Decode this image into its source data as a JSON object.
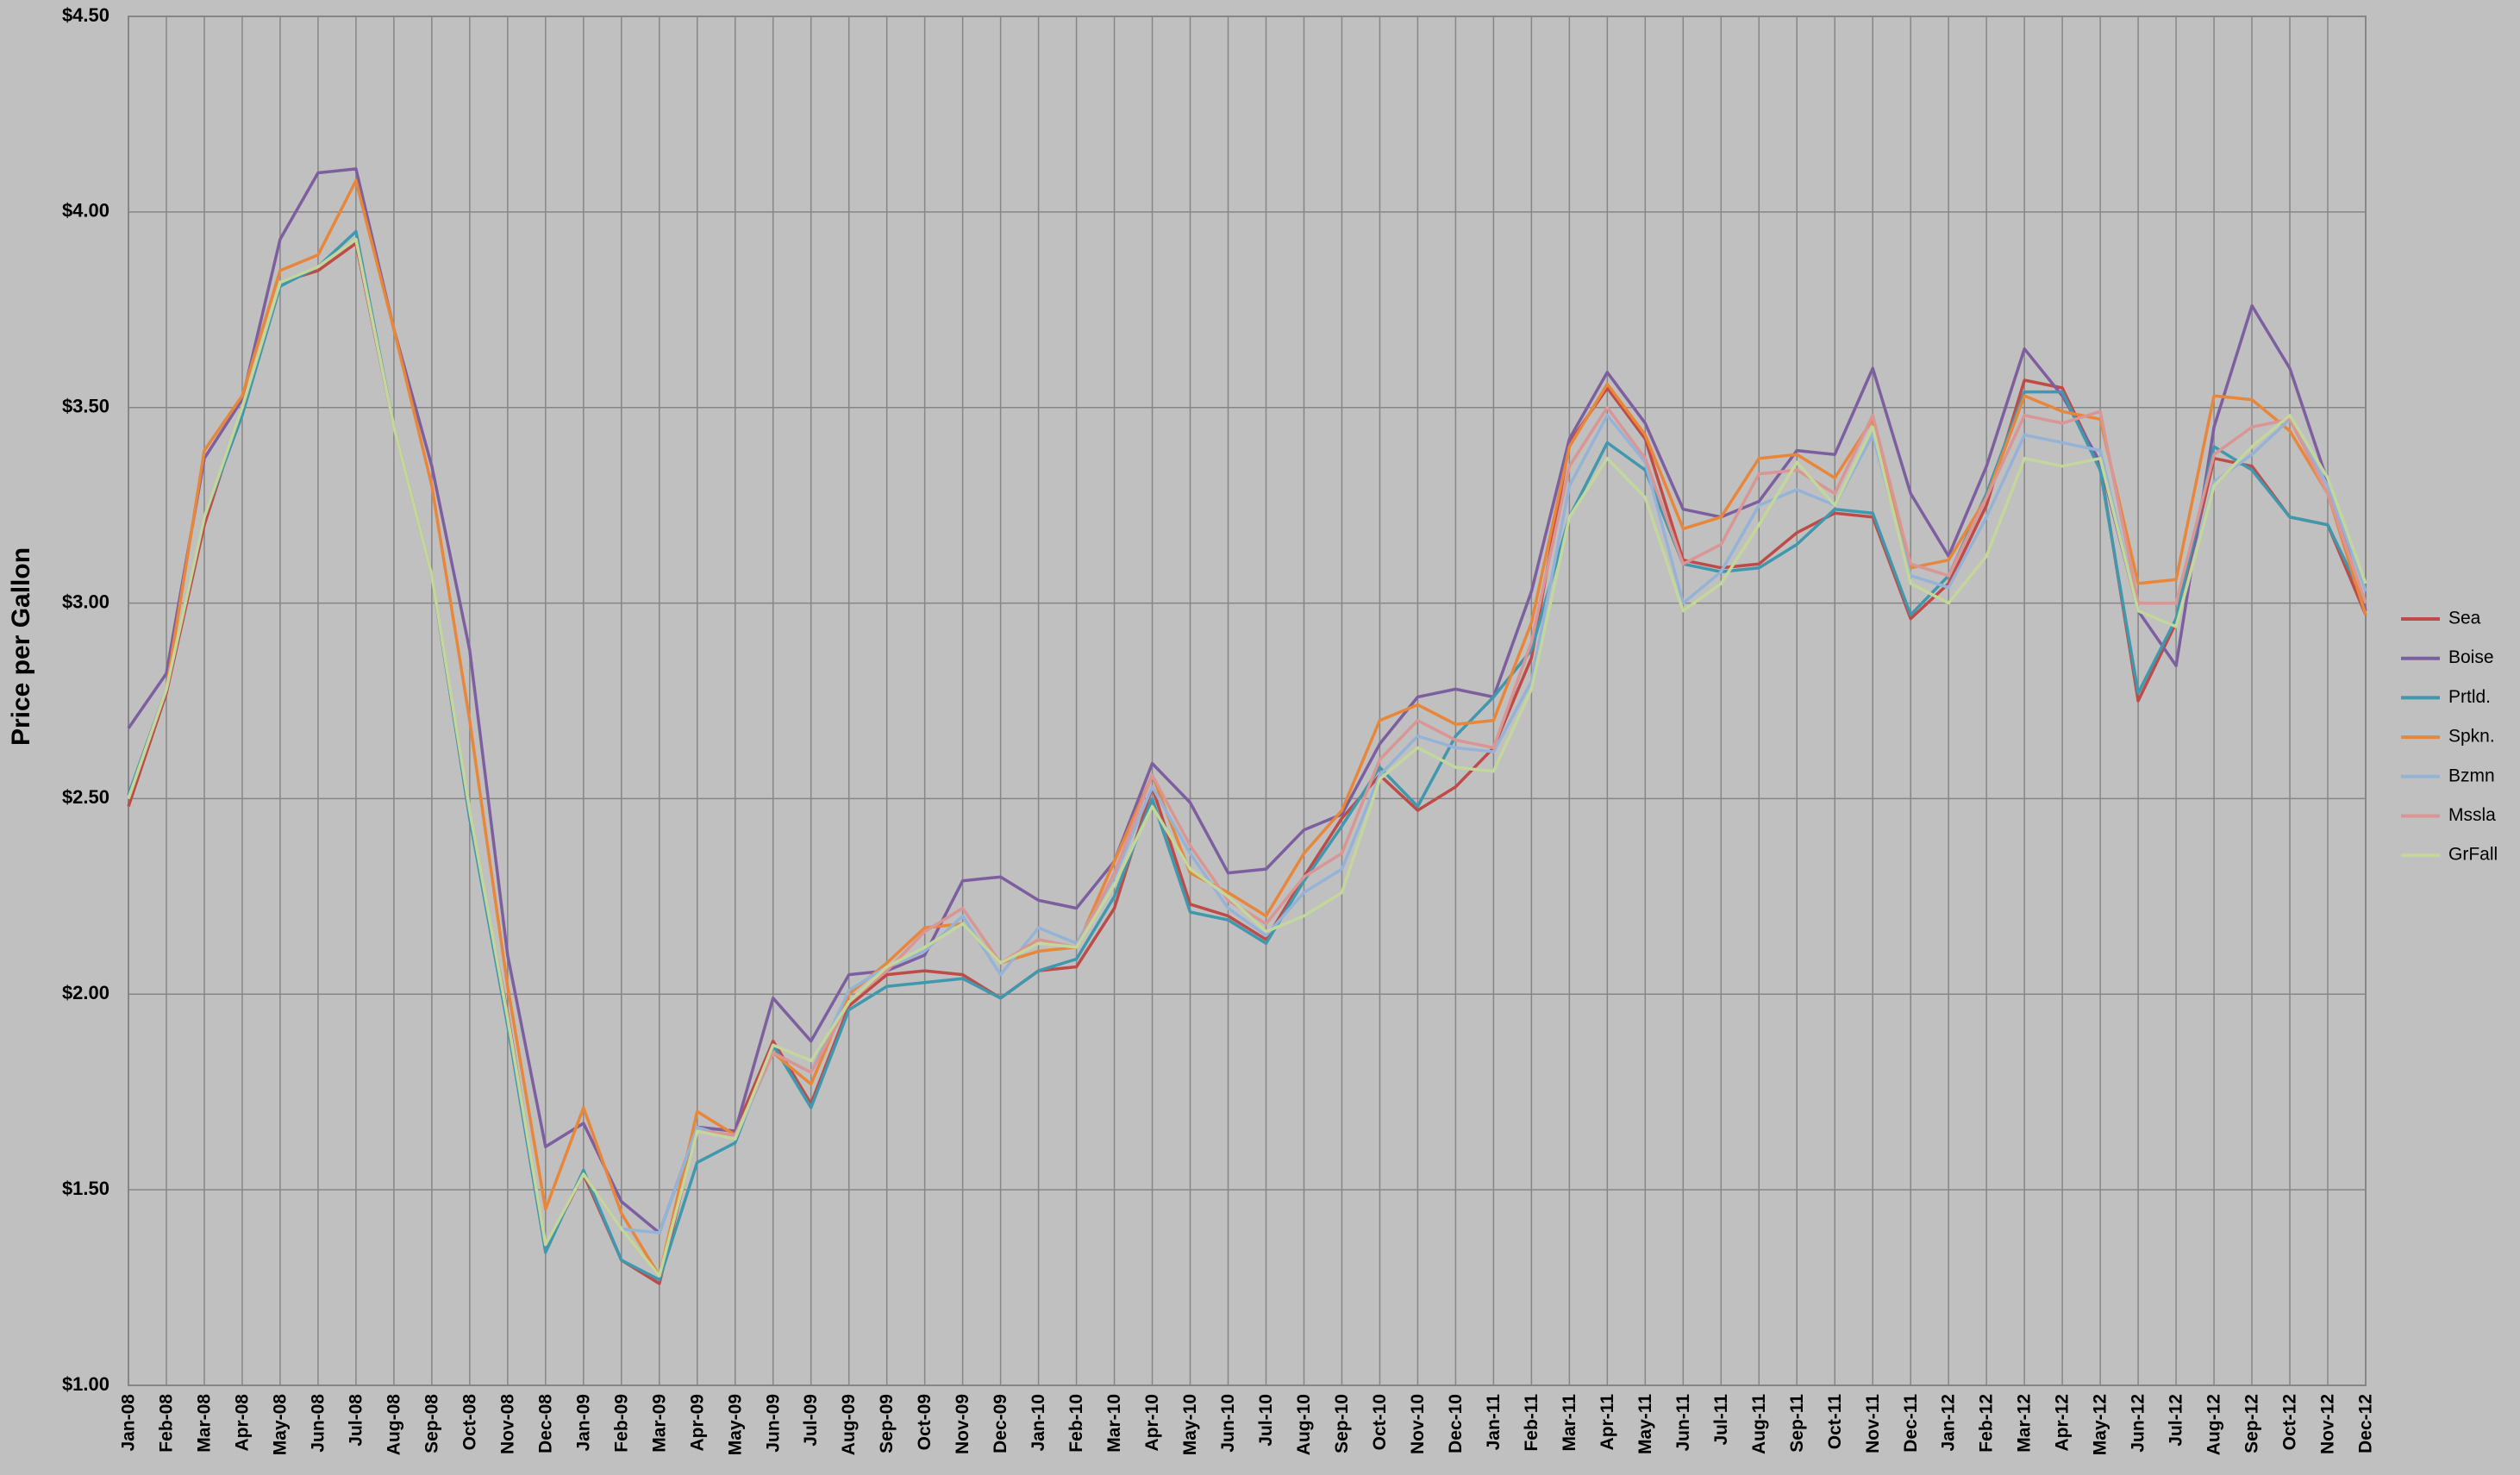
{
  "chart_data": {
    "type": "line",
    "y_label": "Price per  Gallon",
    "categories": [
      "Jan-08",
      "Feb-08",
      "Mar-08",
      "Apr-08",
      "May-08",
      "Jun-08",
      "Jul-08",
      "Aug-08",
      "Sep-08",
      "Oct-08",
      "Nov-08",
      "Dec-08",
      "Jan-09",
      "Feb-09",
      "Mar-09",
      "Apr-09",
      "May-09",
      "Jun-09",
      "Jul-09",
      "Aug-09",
      "Sep-09",
      "Oct-09",
      "Nov-09",
      "Dec-09",
      "Jan-10",
      "Feb-10",
      "Mar-10",
      "Apr-10",
      "May-10",
      "Jun-10",
      "Jul-10",
      "Aug-10",
      "Sep-10",
      "Oct-10",
      "Nov-10",
      "Dec-10",
      "Jan-11",
      "Feb-11",
      "Mar-11",
      "Apr-11",
      "May-11",
      "Jun-11",
      "Jul-11",
      "Aug-11",
      "Sep-11",
      "Oct-11",
      "Nov-11",
      "Dec-11",
      "Jan-12",
      "Feb-12",
      "Mar-12",
      "Apr-12",
      "May-12",
      "Jun-12",
      "Jul-12",
      "Aug-12",
      "Sep-12",
      "Oct-12",
      "Nov-12",
      "Dec-12"
    ],
    "series": [
      {
        "name": "Sea",
        "color": "#be4b48",
        "values": [
          2.48,
          2.77,
          3.2,
          3.5,
          3.82,
          3.85,
          3.92,
          3.45,
          3.07,
          2.45,
          1.95,
          1.35,
          1.54,
          1.32,
          1.26,
          1.66,
          1.65,
          1.88,
          1.72,
          1.97,
          2.05,
          2.06,
          2.05,
          1.99,
          2.06,
          2.07,
          2.22,
          2.53,
          2.23,
          2.2,
          2.14,
          2.3,
          2.45,
          2.56,
          2.47,
          2.53,
          2.63,
          2.86,
          3.41,
          3.55,
          3.42,
          3.11,
          3.09,
          3.1,
          3.18,
          3.23,
          3.22,
          2.96,
          3.05,
          3.25,
          3.57,
          3.55,
          3.35,
          2.75,
          2.95,
          3.37,
          3.35,
          3.22,
          3.2,
          2.97
        ]
      },
      {
        "name": "Boise",
        "color": "#7d5fa0",
        "values": [
          2.68,
          2.82,
          3.37,
          3.52,
          3.93,
          4.1,
          4.11,
          3.7,
          3.35,
          2.88,
          2.1,
          1.61,
          1.67,
          1.47,
          1.39,
          1.66,
          1.65,
          1.99,
          1.88,
          2.05,
          2.06,
          2.1,
          2.29,
          2.3,
          2.24,
          2.22,
          2.34,
          2.59,
          2.49,
          2.31,
          2.32,
          2.42,
          2.46,
          2.64,
          2.76,
          2.78,
          2.76,
          3.03,
          3.42,
          3.59,
          3.46,
          3.24,
          3.22,
          3.26,
          3.39,
          3.38,
          3.6,
          3.28,
          3.12,
          3.35,
          3.65,
          3.53,
          3.36,
          2.98,
          2.84,
          3.45,
          3.76,
          3.6,
          3.31,
          2.98
        ]
      },
      {
        "name": "Prtld.",
        "color": "#3f98ad",
        "values": [
          2.51,
          2.78,
          3.22,
          3.48,
          3.81,
          3.86,
          3.95,
          3.45,
          3.07,
          2.45,
          1.92,
          1.34,
          1.55,
          1.32,
          1.27,
          1.57,
          1.62,
          1.87,
          1.71,
          1.96,
          2.02,
          2.03,
          2.04,
          1.99,
          2.06,
          2.09,
          2.25,
          2.5,
          2.21,
          2.19,
          2.13,
          2.29,
          2.43,
          2.58,
          2.48,
          2.66,
          2.76,
          2.88,
          3.22,
          3.41,
          3.34,
          3.1,
          3.08,
          3.09,
          3.15,
          3.24,
          3.23,
          2.97,
          3.07,
          3.28,
          3.54,
          3.54,
          3.34,
          2.77,
          2.96,
          3.4,
          3.34,
          3.22,
          3.2,
          3.0
        ]
      },
      {
        "name": "Spkn.",
        "color": "#e8873a",
        "values": [
          2.5,
          2.78,
          3.39,
          3.53,
          3.85,
          3.89,
          4.08,
          3.7,
          3.3,
          2.7,
          2.02,
          1.45,
          1.71,
          1.44,
          1.28,
          1.7,
          1.64,
          1.85,
          1.77,
          2.0,
          2.08,
          2.17,
          2.18,
          2.08,
          2.11,
          2.12,
          2.34,
          2.56,
          2.31,
          2.26,
          2.2,
          2.36,
          2.47,
          2.7,
          2.74,
          2.69,
          2.7,
          2.95,
          3.4,
          3.56,
          3.43,
          3.19,
          3.22,
          3.37,
          3.38,
          3.32,
          3.47,
          3.09,
          3.11,
          3.27,
          3.53,
          3.49,
          3.47,
          3.05,
          3.06,
          3.53,
          3.52,
          3.44,
          3.28,
          2.97
        ]
      },
      {
        "name": "Bzmn",
        "color": "#95b3d7",
        "values": [
          2.5,
          2.78,
          3.22,
          3.5,
          3.82,
          3.86,
          3.93,
          3.45,
          3.07,
          2.47,
          1.94,
          1.36,
          1.54,
          1.4,
          1.39,
          1.66,
          1.63,
          1.85,
          1.8,
          2.01,
          2.07,
          2.11,
          2.2,
          2.05,
          2.17,
          2.13,
          2.3,
          2.53,
          2.36,
          2.22,
          2.15,
          2.26,
          2.32,
          2.56,
          2.66,
          2.63,
          2.62,
          2.8,
          3.3,
          3.48,
          3.36,
          3.0,
          3.08,
          3.25,
          3.29,
          3.25,
          3.43,
          3.07,
          3.04,
          3.22,
          3.43,
          3.41,
          3.39,
          2.98,
          2.94,
          3.31,
          3.38,
          3.47,
          3.3,
          3.03
        ]
      },
      {
        "name": "Mssla",
        "color": "#d99694",
        "values": [
          2.5,
          2.78,
          3.22,
          3.5,
          3.82,
          3.86,
          3.93,
          3.45,
          3.07,
          2.47,
          1.94,
          1.36,
          1.54,
          1.4,
          1.28,
          1.65,
          1.64,
          1.85,
          1.8,
          1.98,
          2.06,
          2.16,
          2.22,
          2.08,
          2.14,
          2.12,
          2.31,
          2.56,
          2.38,
          2.24,
          2.18,
          2.3,
          2.36,
          2.6,
          2.7,
          2.65,
          2.63,
          2.9,
          3.35,
          3.5,
          3.37,
          3.1,
          3.15,
          3.33,
          3.34,
          3.28,
          3.48,
          3.1,
          3.07,
          3.27,
          3.48,
          3.46,
          3.49,
          3.0,
          3.0,
          3.38,
          3.45,
          3.47,
          3.28,
          3.0
        ]
      },
      {
        "name": "GrFall",
        "color": "#c3d69b",
        "values": [
          2.5,
          2.78,
          3.22,
          3.5,
          3.82,
          3.86,
          3.93,
          3.45,
          3.07,
          2.47,
          1.94,
          1.36,
          1.54,
          1.4,
          1.28,
          1.65,
          1.63,
          1.87,
          1.83,
          1.98,
          2.07,
          2.12,
          2.18,
          2.08,
          2.13,
          2.12,
          2.28,
          2.48,
          2.32,
          2.25,
          2.16,
          2.2,
          2.26,
          2.55,
          2.63,
          2.58,
          2.57,
          2.78,
          3.22,
          3.37,
          3.27,
          2.98,
          3.05,
          3.2,
          3.36,
          3.25,
          3.45,
          3.05,
          3.0,
          3.12,
          3.37,
          3.35,
          3.37,
          2.98,
          2.94,
          3.3,
          3.4,
          3.48,
          3.32,
          3.05
        ]
      }
    ],
    "ylim": [
      1.0,
      4.5
    ],
    "yticks": [
      {
        "value": 1.0,
        "label": "$1.00"
      },
      {
        "value": 1.5,
        "label": "$1.50"
      },
      {
        "value": 2.0,
        "label": "$2.00"
      },
      {
        "value": 2.5,
        "label": "$2.50"
      },
      {
        "value": 3.0,
        "label": "$3.00"
      },
      {
        "value": 3.5,
        "label": "$3.50"
      },
      {
        "value": 4.0,
        "label": "$4.00"
      },
      {
        "value": 4.5,
        "label": "$4.50"
      }
    ],
    "grid": true,
    "legend": "right"
  }
}
